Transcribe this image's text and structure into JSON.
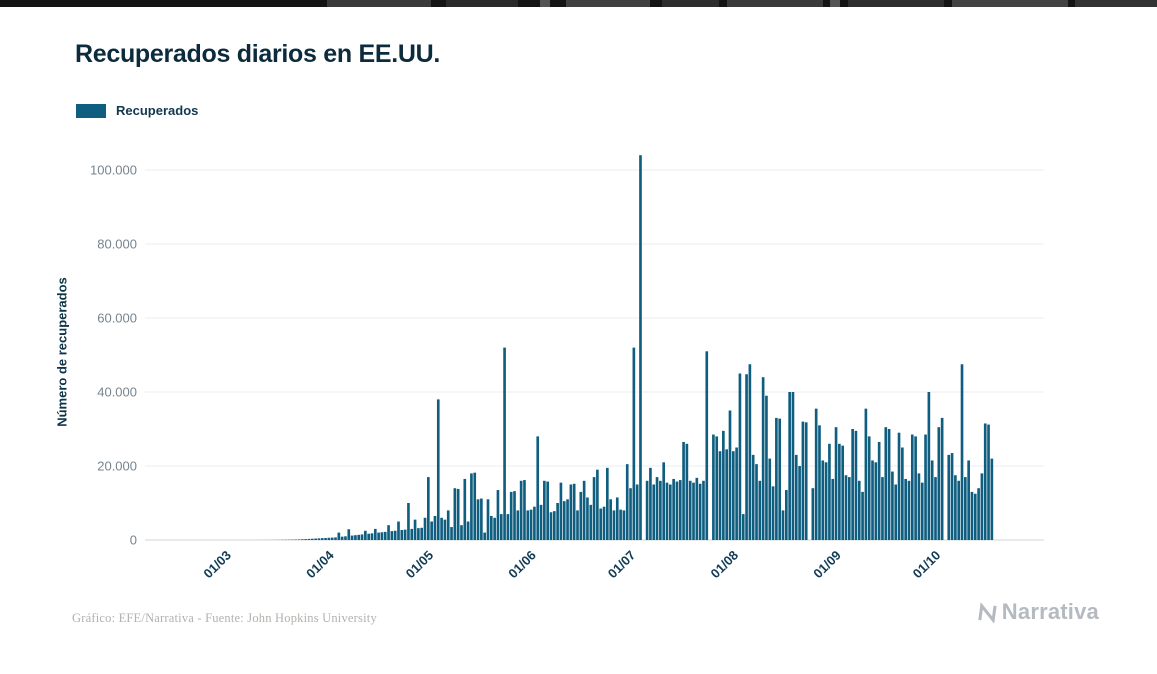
{
  "page": {
    "title": "Recuperados diarios en EE.UU.",
    "legend": {
      "label": "Recuperados",
      "color": "#0f5d7f"
    },
    "footer": "Gráfico: EFE/Narrativa - Fuente: John Hopkins University",
    "brand": "Narrativa"
  },
  "chart_data": {
    "type": "bar",
    "title": "Recuperados diarios en EE.UU.",
    "series_name": "Recuperados",
    "xlabel": "",
    "ylabel": "Número de recuperados",
    "ylim": [
      0,
      100000
    ],
    "y_ticks": [
      0,
      20000,
      40000,
      60000,
      80000,
      100000
    ],
    "y_tick_labels": [
      "0",
      "20.000",
      "40.000",
      "60.000",
      "80.000",
      "100.000"
    ],
    "grid": true,
    "legend_position": "top-left",
    "bar_color": "#0f5d7f",
    "x_range": [
      "2020-02-05",
      "2020-11-01"
    ],
    "start_date": "2020-02-05",
    "x_ticks": [
      {
        "date": "2020-03-01",
        "label": "01/03"
      },
      {
        "date": "2020-04-01",
        "label": "01/04"
      },
      {
        "date": "2020-05-01",
        "label": "01/05"
      },
      {
        "date": "2020-06-01",
        "label": "01/06"
      },
      {
        "date": "2020-07-01",
        "label": "01/07"
      },
      {
        "date": "2020-08-01",
        "label": "01/08"
      },
      {
        "date": "2020-09-01",
        "label": "01/09"
      },
      {
        "date": "2020-10-01",
        "label": "01/10"
      }
    ],
    "values": [
      0,
      0,
      0,
      0,
      0,
      0,
      0,
      0,
      0,
      0,
      0,
      0,
      0,
      0,
      0,
      0,
      0,
      0,
      0,
      0,
      0,
      0,
      0,
      0,
      0,
      0,
      0,
      0,
      0,
      0,
      0,
      0,
      5,
      8,
      12,
      15,
      20,
      25,
      30,
      40,
      50,
      60,
      75,
      90,
      110,
      130,
      160,
      200,
      250,
      300,
      350,
      400,
      450,
      500,
      550,
      600,
      650,
      700,
      2000,
      900,
      1000,
      2900,
      1200,
      1300,
      1400,
      1500,
      2500,
      1700,
      1800,
      3000,
      2000,
      2100,
      2200,
      4000,
      2400,
      2500,
      5000,
      2700,
      2800,
      10000,
      3000,
      5500,
      3200,
      3300,
      6000,
      17000,
      5000,
      6500,
      38000,
      6000,
      5500,
      8000,
      3500,
      14000,
      13800,
      4000,
      16500,
      5000,
      18000,
      18200,
      11000,
      11200,
      2000,
      11000,
      6500,
      6000,
      13500,
      7000,
      52000,
      7000,
      13000,
      13200,
      8000,
      16000,
      16200,
      8000,
      8200,
      9000,
      28000,
      9500,
      16000,
      15800,
      7500,
      7800,
      10000,
      15500,
      10500,
      11000,
      15000,
      15200,
      8000,
      13000,
      16000,
      11500,
      9500,
      17000,
      19000,
      8500,
      9000,
      19500,
      11000,
      8000,
      11500,
      8200,
      8000,
      20500,
      14000,
      52000,
      15000,
      104000,
      0,
      16000,
      19500,
      15000,
      17000,
      16000,
      21000,
      15500,
      15000,
      16500,
      15800,
      16200,
      26500,
      26000,
      16000,
      15500,
      16800,
      15200,
      16000,
      51000,
      0,
      28500,
      28000,
      24000,
      29500,
      24500,
      35000,
      24000,
      25000,
      45000,
      7000,
      44800,
      47500,
      23000,
      20500,
      16000,
      44000,
      39000,
      22000,
      14500,
      33000,
      32800,
      8000,
      13500,
      40000,
      40000,
      23000,
      20000,
      32000,
      31800,
      0,
      14000,
      35500,
      31000,
      21500,
      21000,
      26000,
      16500,
      30500,
      26000,
      25500,
      17500,
      17000,
      30000,
      29500,
      16000,
      13000,
      35500,
      28000,
      21500,
      21000,
      26500,
      17000,
      30500,
      30000,
      18500,
      15000,
      29000,
      25000,
      16500,
      16000,
      28500,
      28000,
      18000,
      15500,
      28500,
      40000,
      21500,
      17000,
      30500,
      33000,
      0,
      23000,
      23500,
      17500,
      16000,
      47500,
      17000,
      21500,
      13000,
      12500,
      14000,
      18000,
      31500,
      31200,
      22000
    ]
  }
}
